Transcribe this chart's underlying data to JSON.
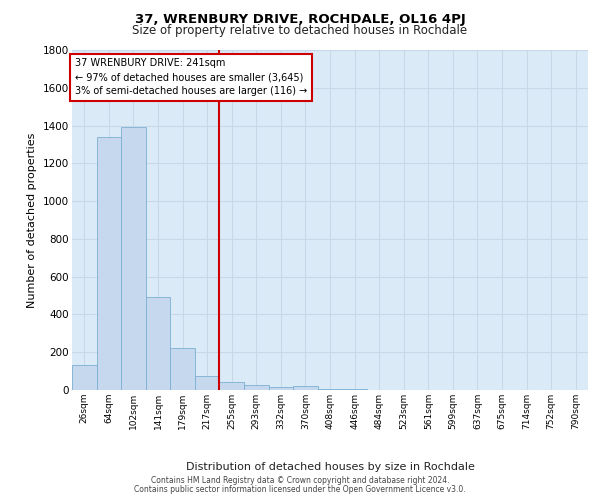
{
  "title": "37, WRENBURY DRIVE, ROCHDALE, OL16 4PJ",
  "subtitle": "Size of property relative to detached houses in Rochdale",
  "xlabel": "Distribution of detached houses by size in Rochdale",
  "ylabel": "Number of detached properties",
  "bar_labels": [
    "26sqm",
    "64sqm",
    "102sqm",
    "141sqm",
    "179sqm",
    "217sqm",
    "255sqm",
    "293sqm",
    "332sqm",
    "370sqm",
    "408sqm",
    "446sqm",
    "484sqm",
    "523sqm",
    "561sqm",
    "599sqm",
    "637sqm",
    "675sqm",
    "714sqm",
    "752sqm",
    "790sqm"
  ],
  "bar_values": [
    130,
    1340,
    1395,
    495,
    225,
    75,
    45,
    27,
    18,
    20,
    5,
    3,
    0,
    0,
    0,
    0,
    0,
    0,
    0,
    0,
    0
  ],
  "bar_color": "#c5d8ee",
  "bar_edge_color": "#7bafd4",
  "vline_x": 5.5,
  "vline_color": "#cc0000",
  "annotation_lines": [
    "37 WRENBURY DRIVE: 241sqm",
    "← 97% of detached houses are smaller (3,645)",
    "3% of semi-detached houses are larger (116) →"
  ],
  "annotation_box_color": "#cc0000",
  "ylim": [
    0,
    1800
  ],
  "yticks": [
    0,
    200,
    400,
    600,
    800,
    1000,
    1200,
    1400,
    1600,
    1800
  ],
  "grid_color": "#c8d8e8",
  "bg_color": "#daeaf7",
  "footer_line1": "Contains HM Land Registry data © Crown copyright and database right 2024.",
  "footer_line2": "Contains public sector information licensed under the Open Government Licence v3.0."
}
